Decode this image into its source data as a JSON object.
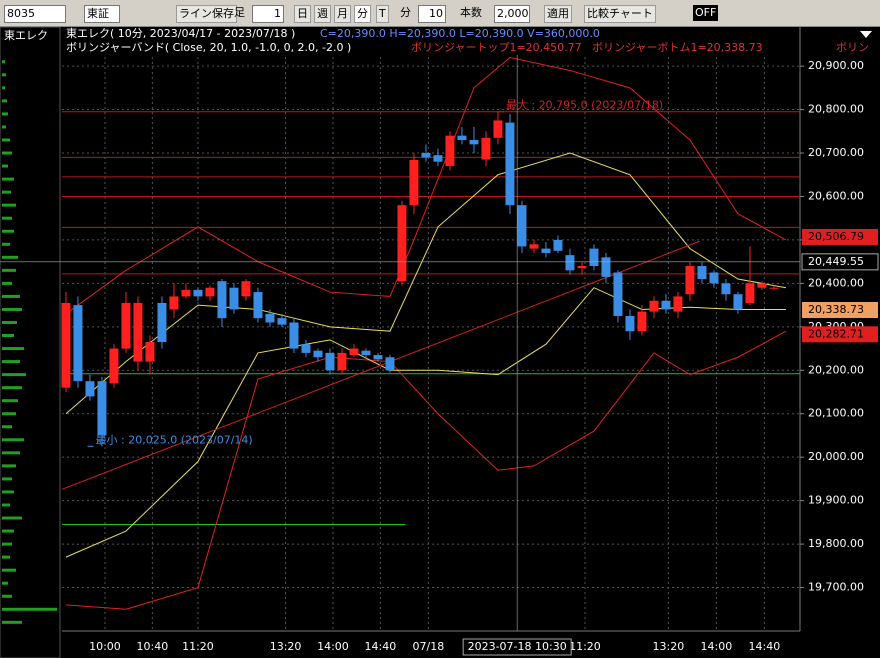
{
  "toolbar": {
    "code": "8035",
    "market": "東証",
    "line_save": "ライン保存",
    "ashi": "足",
    "ashi_num": "1",
    "day": "日",
    "week": "週",
    "month": "月",
    "minute": "分",
    "tick": "T",
    "unit": "分",
    "interval": "10",
    "bars_label": "本数",
    "bars": "2,000",
    "apply": "適用",
    "compare": "比較チャート",
    "off": "OFF"
  },
  "panel_title": "東エレク",
  "chart_data": {
    "type": "candlestick",
    "title": "東エレク( 10分, 2023/04/17 - 2023/07/18 )",
    "ohlcv": "C=20,390.0 H=20,390.0 L=20,390.0 V=360,000.0",
    "indicator": "ボリンジャーバンド( Close, 20, 1.0, -1.0, 0, 2.0, -2.0 )",
    "band_top": "ボリンジャートップ1=20,450.77",
    "band_bottom": "ボリンジャーボトム1=20,338.73",
    "band_more": "ボリン",
    "up_color": "#ff2020",
    "down_color": "#3a8ee6",
    "open": [
      20160,
      20350,
      20175,
      20175,
      20170,
      20250,
      20220,
      20220,
      20355,
      20340,
      20370,
      20385,
      20370,
      20405,
      20390,
      20370,
      20380,
      20330,
      20320,
      20310,
      20260,
      20245,
      20240,
      20200,
      20235,
      20245,
      20235,
      20230,
      20405,
      20580,
      20700,
      20695,
      20670,
      20740,
      20730,
      20685,
      20735,
      20770,
      20580,
      20480,
      20480,
      20500,
      20465,
      20435,
      20480,
      20460,
      20425,
      20325,
      20290,
      20335,
      20360,
      20335,
      20375,
      20440,
      20425,
      20400,
      20375,
      20355,
      20390,
      20390
    ],
    "high": [
      20380,
      20370,
      20190,
      20185,
      20260,
      20380,
      20370,
      20280,
      20370,
      20400,
      20400,
      20390,
      20395,
      20410,
      20400,
      20410,
      20390,
      20340,
      20330,
      20320,
      20270,
      20250,
      20250,
      20250,
      20260,
      20250,
      20240,
      20235,
      20590,
      20700,
      20720,
      20710,
      20750,
      20760,
      20760,
      20750,
      20795,
      20790,
      20590,
      20500,
      20495,
      20510,
      20480,
      20450,
      20490,
      20470,
      20430,
      20340,
      20350,
      20370,
      20375,
      20380,
      20450,
      20450,
      20430,
      20410,
      20380,
      20485,
      20405,
      20395
    ],
    "low": [
      20150,
      20160,
      20130,
      20025,
      20160,
      20240,
      20200,
      20190,
      20250,
      20320,
      20365,
      20360,
      20360,
      20300,
      20330,
      20360,
      20310,
      20300,
      20300,
      20240,
      20230,
      20220,
      20190,
      20190,
      20230,
      20230,
      20220,
      20195,
      20395,
      20560,
      20680,
      20670,
      20660,
      20720,
      20700,
      20670,
      20720,
      20560,
      20470,
      20470,
      20460,
      20470,
      20420,
      20420,
      20430,
      20400,
      20310,
      20270,
      20280,
      20320,
      20330,
      20320,
      20360,
      20400,
      20390,
      20360,
      20330,
      20350,
      20385,
      20385
    ],
    "close": [
      20355,
      20175,
      20140,
      20050,
      20250,
      20355,
      20355,
      20265,
      20265,
      20370,
      20385,
      20370,
      20390,
      20320,
      20340,
      20405,
      20320,
      20310,
      20305,
      20250,
      20240,
      20230,
      20200,
      20240,
      20250,
      20235,
      20225,
      20200,
      20580,
      20684,
      20690,
      20680,
      20740,
      20730,
      20720,
      20735,
      20775,
      20580,
      20485,
      20490,
      20470,
      20475,
      20430,
      20440,
      20440,
      20415,
      20325,
      20290,
      20335,
      20360,
      20340,
      20370,
      20440,
      20410,
      20400,
      20375,
      20340,
      20400,
      20400,
      20390
    ],
    "xlim": [
      -0.33,
      61.17
    ],
    "xticks": [
      {
        "value": 3.25,
        "label": "10:00"
      },
      {
        "value": 7.2,
        "label": "10:40"
      },
      {
        "value": 11,
        "label": "11:20"
      },
      {
        "value": 18.3,
        "label": "13:20"
      },
      {
        "value": 22.25,
        "label": "14:00"
      },
      {
        "value": 26.2,
        "label": "14:40"
      },
      {
        "value": 30.2,
        "label": "07/18"
      },
      {
        "value": 43.25,
        "label": "11:20"
      },
      {
        "value": 50.2,
        "label": "13:20"
      },
      {
        "value": 54.2,
        "label": "14:00"
      },
      {
        "value": 58.2,
        "label": "14:40"
      }
    ],
    "ylim": [
      19600,
      20990
    ],
    "yticks": [
      {
        "value": 19700,
        "label": "19,700.00"
      },
      {
        "value": 19800,
        "label": "19,800.00"
      },
      {
        "value": 19900,
        "label": "19,900.00"
      },
      {
        "value": 20000,
        "label": "20,000.00"
      },
      {
        "value": 20100,
        "label": "20,100.00"
      },
      {
        "value": 20200,
        "label": "20,200.00"
      },
      {
        "value": 20300,
        "label": "20,300.00"
      },
      {
        "value": 20400,
        "label": "20,400.00"
      },
      {
        "value": 20500,
        "label": "20,500.00"
      },
      {
        "value": 20600,
        "label": "20,600.00"
      },
      {
        "value": 20700,
        "label": "20,700.00"
      },
      {
        "value": 20800,
        "label": "20,800.00"
      },
      {
        "value": 20900,
        "label": "20,900.00"
      }
    ],
    "bands": [
      {
        "color": "#e02020",
        "x": [
          0,
          5,
          11,
          16,
          22,
          27,
          29,
          34,
          37,
          42,
          47,
          52,
          56,
          60
        ],
        "values": [
          20330,
          20430,
          20530,
          20450,
          20380,
          20370,
          20500,
          20850,
          20920,
          20890,
          20850,
          20730,
          20560,
          20500
        ]
      },
      {
        "color": "#e02020",
        "x": [
          0,
          5,
          11,
          16,
          22,
          27,
          31,
          36,
          39,
          44,
          49,
          52,
          56,
          60
        ],
        "values": [
          19660,
          19650,
          19700,
          20180,
          20230,
          20220,
          20100,
          19970,
          19980,
          20060,
          20240,
          20190,
          20230,
          20290
        ]
      },
      {
        "color": "#e8e060",
        "x": [
          0,
          5,
          11,
          16,
          22,
          27,
          31,
          36,
          42,
          47,
          52,
          56,
          60
        ],
        "values": [
          20100,
          20220,
          20350,
          20340,
          20300,
          20290,
          20530,
          20650,
          20700,
          20650,
          20480,
          20410,
          20390
        ]
      },
      {
        "color": "#e8e060",
        "x": [
          0,
          5,
          11,
          16,
          22,
          27,
          31,
          36,
          40,
          44,
          48,
          52,
          56,
          60
        ],
        "values": [
          19770,
          19830,
          19990,
          20240,
          20270,
          20200,
          20200,
          20190,
          20260,
          20390,
          20340,
          20345,
          20340,
          20340
        ]
      }
    ],
    "trendline": {
      "color": "#d02020",
      "x": [
        -0.33,
        52.8
      ],
      "values": [
        19926,
        20497
      ]
    },
    "levels": [
      {
        "value": 20795,
        "color": "#c01818"
      },
      {
        "value": 20690,
        "color": "#c01818"
      },
      {
        "value": 20645,
        "color": "#c01818"
      },
      {
        "value": 20600,
        "color": "#c01818"
      },
      {
        "value": 20529,
        "color": "#c01818"
      },
      {
        "value": 20422,
        "color": "#c01818"
      },
      {
        "value": 20192,
        "color": "#20c020"
      },
      {
        "value": 19845,
        "color": "#20c020",
        "x_end": 28.3
      }
    ],
    "max_note": {
      "label": "最大 : 20,795.0 (2023/07/18)",
      "value": 20795,
      "x": 36.5,
      "color": "#d02020"
    },
    "min_note": {
      "label": "最小 : 20,025.0 (2023/07/14)",
      "value": 20025,
      "x": 2.3,
      "color": "#3a8ee6"
    },
    "cursor": {
      "value": 20449.55,
      "label": "20,449.55",
      "x": 37.6,
      "x_label": "2023-07-18 10:30"
    },
    "price_tags": [
      {
        "value": 20506.79,
        "label": "20,506.79",
        "color": "#e02020"
      },
      {
        "value": 20338.73,
        "label": "20,338.73",
        "color": "#f0a060"
      },
      {
        "value": 20282.71,
        "label": "20,282.71",
        "color": "#e02020"
      }
    ],
    "volume_profile": {
      "color": "#20a020",
      "levels": [
        20910,
        20880,
        20850,
        20820,
        20790,
        20760,
        20730,
        20700,
        20670,
        20640,
        20610,
        20580,
        20550,
        20520,
        20490,
        20460,
        20430,
        20400,
        20370,
        20340,
        20310,
        20280,
        20250,
        20220,
        20190,
        20160,
        20130,
        20100,
        20070,
        20040,
        20010,
        19980,
        19950,
        19920,
        19890,
        19860,
        19830,
        19800,
        19770,
        19740,
        19710,
        19680,
        19650,
        19620
      ],
      "values": [
        3,
        4,
        3,
        5,
        6,
        4,
        8,
        10,
        6,
        12,
        9,
        14,
        10,
        12,
        8,
        16,
        14,
        10,
        18,
        20,
        15,
        12,
        22,
        18,
        24,
        20,
        16,
        14,
        10,
        22,
        18,
        14,
        10,
        12,
        8,
        20,
        12,
        10,
        8,
        14,
        6,
        10,
        55,
        20
      ]
    }
  }
}
